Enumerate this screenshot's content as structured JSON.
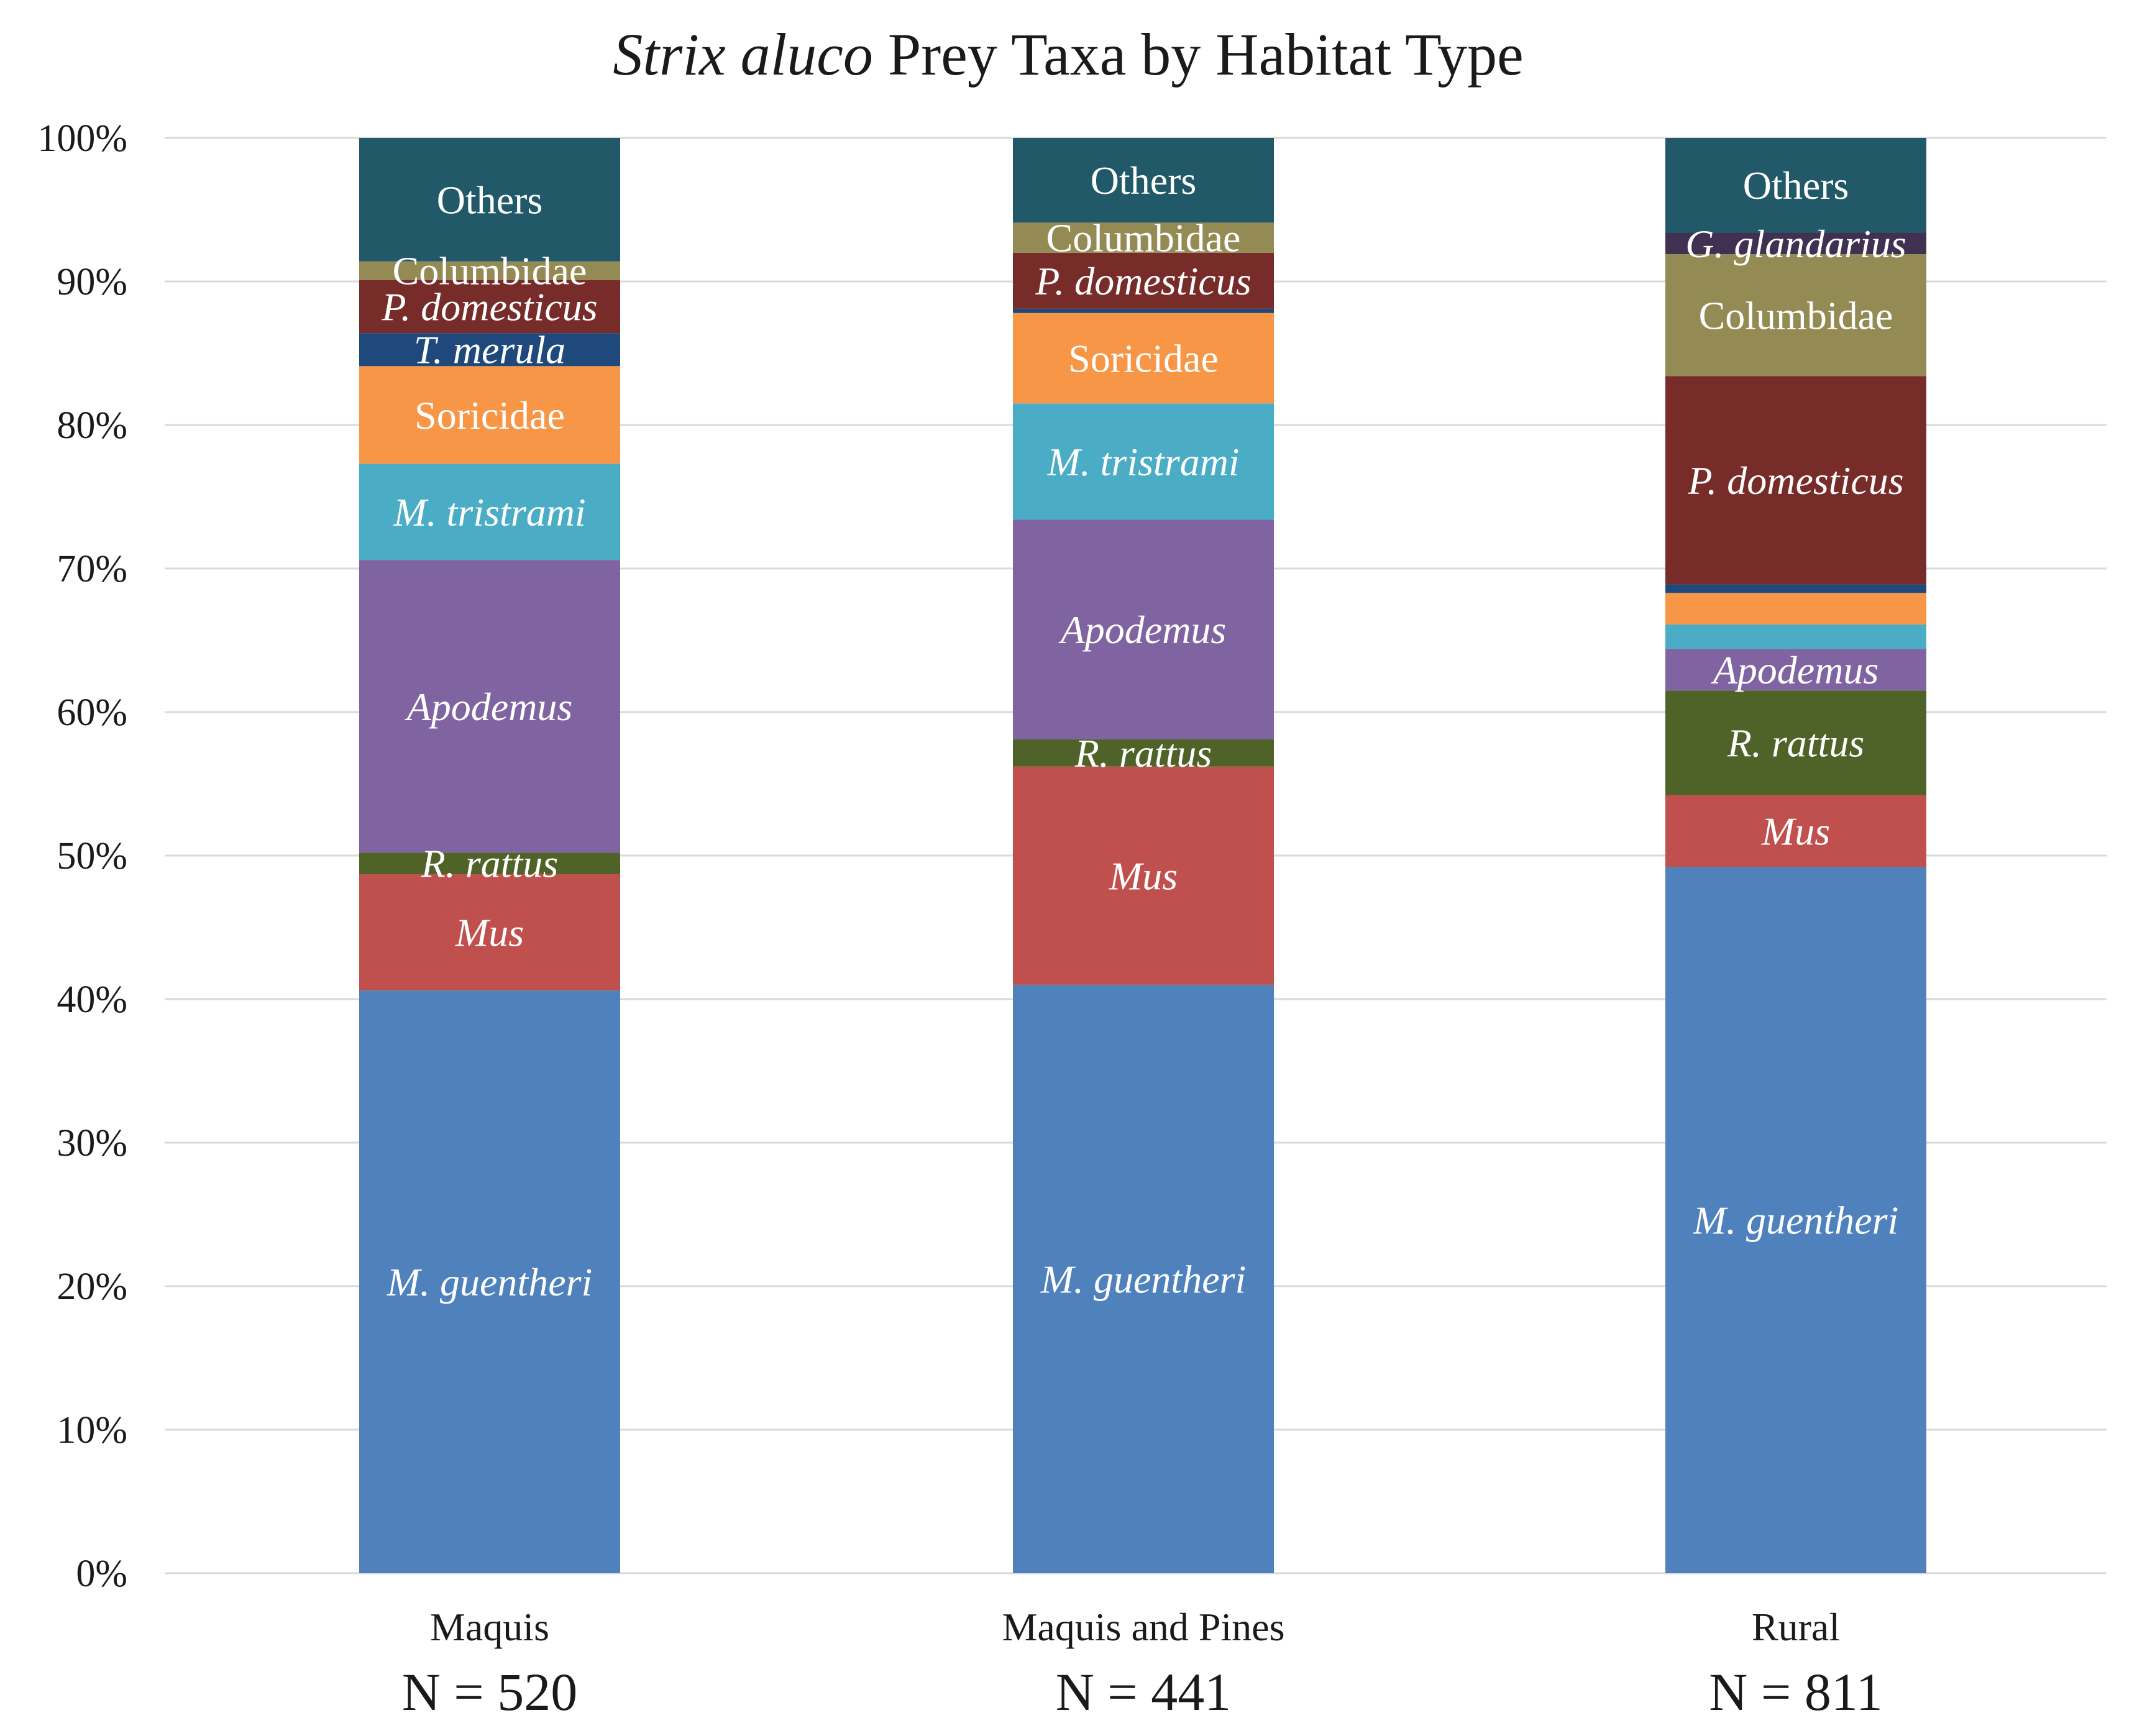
{
  "chart_data": {
    "type": "bar",
    "stacked": true,
    "title_italic": "Strix aluco",
    "title_rest": " Prey Taxa by Habitat Type",
    "xlabel": "",
    "ylabel": "",
    "ylim": [
      0,
      100
    ],
    "yticks": [
      "0%",
      "10%",
      "20%",
      "30%",
      "40%",
      "50%",
      "60%",
      "70%",
      "80%",
      "90%",
      "100%"
    ],
    "categories": [
      "Maquis",
      "Maquis and Pines",
      "Rural"
    ],
    "sample_sizes": [
      "N = 520",
      "N = 441",
      "N = 811"
    ],
    "series": [
      {
        "name": "M. guentheri",
        "color": "#4f81bd",
        "values": [
          40.6,
          41.0,
          49.2
        ],
        "labels": [
          "M. guentheri",
          "M. guentheri",
          "M. guentheri"
        ],
        "italic": true
      },
      {
        "name": "Mus",
        "color": "#c0504d",
        "values": [
          8.1,
          15.2,
          5.0
        ],
        "labels": [
          "Mus",
          "Mus",
          "Mus"
        ],
        "italic": true
      },
      {
        "name": "R. rattus",
        "color": "#4f6228",
        "values": [
          1.5,
          1.9,
          7.3
        ],
        "labels": [
          "R. rattus",
          "R. rattus",
          "R. rattus"
        ],
        "italic": true
      },
      {
        "name": "Apodemus",
        "color": "#8064a2",
        "values": [
          20.4,
          15.3,
          2.9
        ],
        "labels": [
          "Apodemus",
          "Apodemus",
          "Apodemus"
        ],
        "italic": true
      },
      {
        "name": "M. tristrami",
        "color": "#4bacc6",
        "values": [
          6.7,
          8.1,
          1.7
        ],
        "labels": [
          "M. tristrami",
          "M. tristrami",
          ""
        ],
        "italic": true
      },
      {
        "name": "Soricidae",
        "color": "#f79646",
        "values": [
          6.8,
          6.3,
          2.2
        ],
        "labels": [
          "Soricidae",
          "Soricidae",
          ""
        ],
        "italic": false
      },
      {
        "name": "T. merula",
        "color": "#1f497d",
        "values": [
          2.3,
          0.3,
          0.6
        ],
        "labels": [
          "T. merula",
          "",
          ""
        ],
        "italic": true
      },
      {
        "name": "P. domesticus",
        "color": "#772c2a",
        "values": [
          3.7,
          3.9,
          14.5
        ],
        "labels": [
          "P. domesticus",
          "P. domesticus",
          "P. domesticus"
        ],
        "italic": true
      },
      {
        "name": "Columbidae",
        "color": "#948a54",
        "values": [
          1.3,
          2.1,
          8.5
        ],
        "labels": [
          "Columbidae",
          "Columbidae",
          "Columbidae"
        ],
        "italic": false
      },
      {
        "name": "G. glandarius",
        "color": "#403152",
        "values": [
          0.0,
          0.0,
          1.5
        ],
        "labels": [
          "",
          "",
          "G. glandarius"
        ],
        "italic": true
      },
      {
        "name": "Others",
        "color": "#215968",
        "values": [
          8.6,
          5.9,
          6.6
        ],
        "labels": [
          "Others",
          "Others",
          "Others"
        ],
        "italic": false
      }
    ]
  }
}
